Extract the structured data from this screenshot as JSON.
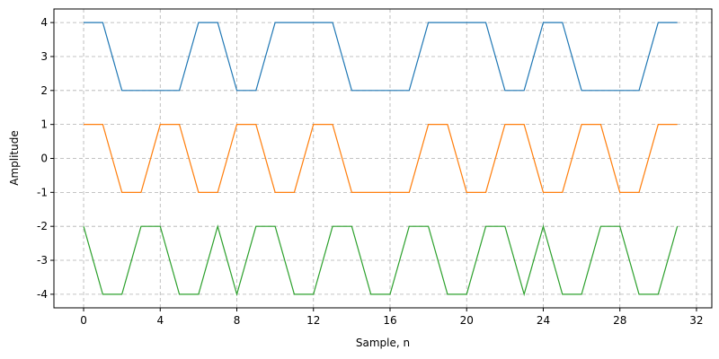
{
  "chart_data": {
    "type": "line",
    "xlabel": "Sample, n",
    "ylabel": "Amplitude",
    "x": [
      0,
      1,
      2,
      3,
      4,
      5,
      6,
      7,
      8,
      9,
      10,
      11,
      12,
      13,
      14,
      15,
      16,
      17,
      18,
      19,
      20,
      21,
      22,
      23,
      24,
      25,
      26,
      27,
      28,
      29,
      30,
      31
    ],
    "series": [
      {
        "color": "#1f77b4",
        "values": [
          4,
          4,
          2,
          2,
          2,
          2,
          4,
          4,
          2,
          2,
          4,
          4,
          4,
          4,
          2,
          2,
          2,
          2,
          4,
          4,
          4,
          4,
          2,
          2,
          4,
          4,
          2,
          2,
          2,
          2,
          4,
          4
        ]
      },
      {
        "color": "#ff7f0e",
        "values": [
          1,
          1,
          -1,
          -1,
          1,
          1,
          -1,
          -1,
          1,
          1,
          -1,
          -1,
          1,
          1,
          -1,
          -1,
          -1,
          -1,
          1,
          1,
          -1,
          -1,
          1,
          1,
          -1,
          -1,
          1,
          1,
          -1,
          -1,
          1,
          1
        ]
      },
      {
        "color": "#2ca02c",
        "values": [
          -2,
          -4,
          -4,
          -2,
          -2,
          -4,
          -4,
          -2,
          -4,
          -2,
          -2,
          -4,
          -4,
          -2,
          -2,
          -4,
          -4,
          -2,
          -2,
          -4,
          -4,
          -2,
          -2,
          -4,
          -2,
          -4,
          -4,
          -2,
          -2,
          -4,
          -4,
          -2
        ]
      }
    ],
    "xlim": [
      -1.55,
      32.8
    ],
    "ylim": [
      -4.4,
      4.4
    ],
    "xticks": [
      0,
      4,
      8,
      12,
      16,
      20,
      24,
      28,
      32
    ],
    "yticks": [
      -4,
      -3,
      -2,
      -1,
      0,
      1,
      2,
      3,
      4
    ],
    "grid": true
  }
}
